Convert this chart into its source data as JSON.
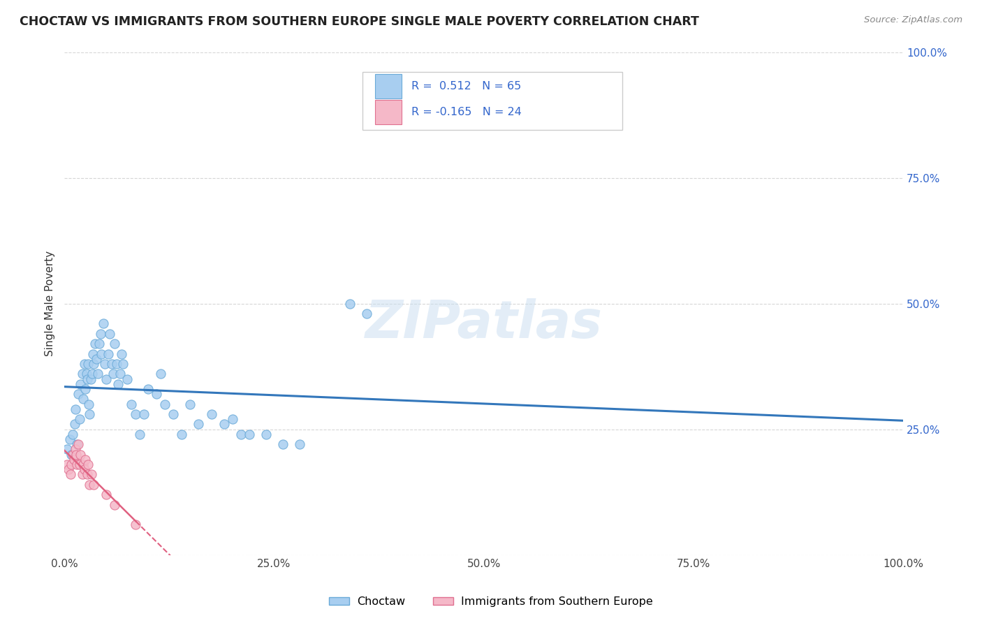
{
  "title": "CHOCTAW VS IMMIGRANTS FROM SOUTHERN EUROPE SINGLE MALE POVERTY CORRELATION CHART",
  "source": "Source: ZipAtlas.com",
  "ylabel": "Single Male Poverty",
  "xlim": [
    0.0,
    1.0
  ],
  "ylim": [
    0.0,
    1.0
  ],
  "xtick_vals": [
    0.0,
    0.25,
    0.5,
    0.75,
    1.0
  ],
  "xtick_labels": [
    "0.0%",
    "25.0%",
    "50.0%",
    "75.0%",
    "100.0%"
  ],
  "ytick_vals": [
    0.0,
    0.25,
    0.5,
    0.75,
    1.0
  ],
  "right_ytick_labels": [
    "",
    "25.0%",
    "50.0%",
    "75.0%",
    "100.0%"
  ],
  "choctaw_color": "#a8cef0",
  "choctaw_edge_color": "#6aaad8",
  "immigrant_color": "#f5b8c8",
  "immigrant_edge_color": "#e07090",
  "trend_blue_color": "#3377bb",
  "trend_pink_color": "#e06080",
  "legend_label_blue": "Choctaw",
  "legend_label_pink": "Immigrants from Southern Europe",
  "R_blue": 0.512,
  "N_blue": 65,
  "R_pink": -0.165,
  "N_pink": 24,
  "watermark": "ZIPatlas",
  "choctaw_x": [
    0.003,
    0.006,
    0.008,
    0.01,
    0.012,
    0.013,
    0.015,
    0.016,
    0.018,
    0.019,
    0.021,
    0.022,
    0.024,
    0.025,
    0.026,
    0.027,
    0.028,
    0.029,
    0.03,
    0.031,
    0.033,
    0.034,
    0.035,
    0.036,
    0.038,
    0.04,
    0.041,
    0.043,
    0.044,
    0.046,
    0.048,
    0.05,
    0.052,
    0.054,
    0.056,
    0.058,
    0.06,
    0.062,
    0.064,
    0.066,
    0.068,
    0.07,
    0.075,
    0.08,
    0.085,
    0.09,
    0.095,
    0.1,
    0.11,
    0.115,
    0.12,
    0.13,
    0.14,
    0.15,
    0.16,
    0.175,
    0.19,
    0.2,
    0.21,
    0.22,
    0.24,
    0.26,
    0.28,
    0.34,
    0.36
  ],
  "choctaw_y": [
    0.21,
    0.23,
    0.2,
    0.24,
    0.26,
    0.29,
    0.22,
    0.32,
    0.27,
    0.34,
    0.36,
    0.31,
    0.38,
    0.33,
    0.36,
    0.35,
    0.38,
    0.3,
    0.28,
    0.35,
    0.36,
    0.4,
    0.38,
    0.42,
    0.39,
    0.36,
    0.42,
    0.44,
    0.4,
    0.46,
    0.38,
    0.35,
    0.4,
    0.44,
    0.38,
    0.36,
    0.42,
    0.38,
    0.34,
    0.36,
    0.4,
    0.38,
    0.35,
    0.3,
    0.28,
    0.24,
    0.28,
    0.33,
    0.32,
    0.36,
    0.3,
    0.28,
    0.24,
    0.3,
    0.26,
    0.28,
    0.26,
    0.27,
    0.24,
    0.24,
    0.24,
    0.22,
    0.22,
    0.5,
    0.48
  ],
  "immigrant_x": [
    0.003,
    0.005,
    0.007,
    0.008,
    0.01,
    0.011,
    0.013,
    0.014,
    0.015,
    0.016,
    0.018,
    0.019,
    0.021,
    0.022,
    0.024,
    0.025,
    0.027,
    0.028,
    0.03,
    0.032,
    0.035,
    0.05,
    0.06,
    0.085
  ],
  "immigrant_y": [
    0.18,
    0.17,
    0.16,
    0.18,
    0.2,
    0.19,
    0.21,
    0.2,
    0.18,
    0.22,
    0.18,
    0.2,
    0.16,
    0.18,
    0.17,
    0.19,
    0.16,
    0.18,
    0.14,
    0.16,
    0.14,
    0.12,
    0.1,
    0.06
  ]
}
